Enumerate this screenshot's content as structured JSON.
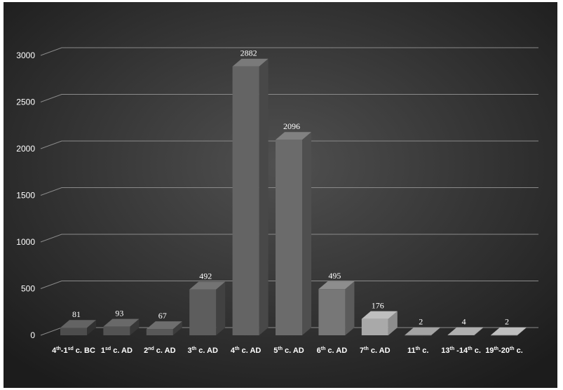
{
  "chart_data": {
    "type": "bar",
    "title": "",
    "xlabel": "",
    "ylabel": "",
    "ylim": [
      0,
      3000
    ],
    "yticks": [
      "0",
      "500",
      "1000",
      "1500",
      "2000",
      "2500",
      "3000"
    ],
    "grid": true,
    "legend": "none",
    "categories": [
      [
        {
          "t": "4"
        },
        {
          "t": "th",
          "sup": true
        },
        {
          "t": "-1"
        },
        {
          "t": "sd",
          "sup": true
        },
        {
          "t": " c. BC"
        }
      ],
      [
        {
          "t": "1"
        },
        {
          "t": "sd",
          "sup": true
        },
        {
          "t": " c. AD"
        }
      ],
      [
        {
          "t": "2"
        },
        {
          "t": "nd",
          "sup": true
        },
        {
          "t": " c. AD"
        }
      ],
      [
        {
          "t": "3"
        },
        {
          "t": "th",
          "sup": true
        },
        {
          "t": " c. AD"
        }
      ],
      [
        {
          "t": "4"
        },
        {
          "t": "th",
          "sup": true
        },
        {
          "t": " c. AD"
        }
      ],
      [
        {
          "t": "5"
        },
        {
          "t": "th",
          "sup": true
        },
        {
          "t": " c. AD"
        }
      ],
      [
        {
          "t": "6"
        },
        {
          "t": "th",
          "sup": true
        },
        {
          "t": " c. AD"
        }
      ],
      [
        {
          "t": "7"
        },
        {
          "t": "th",
          "sup": true
        },
        {
          "t": " c. AD"
        }
      ],
      [
        {
          "t": "11"
        },
        {
          "t": "th",
          "sup": true
        },
        {
          "t": " c."
        }
      ],
      [
        {
          "t": "13"
        },
        {
          "t": "th",
          "sup": true
        },
        {
          "t": " -14"
        },
        {
          "t": "th",
          "sup": true
        },
        {
          "t": " c."
        }
      ],
      [
        {
          "t": "19"
        },
        {
          "t": "th",
          "sup": true
        },
        {
          "t": "-20"
        },
        {
          "t": "th",
          "sup": true
        },
        {
          "t": " c."
        }
      ]
    ],
    "values": [
      81,
      93,
      67,
      492,
      2882,
      2096,
      495,
      176,
      2,
      4,
      2
    ],
    "data_labels": [
      "81",
      "93",
      "67",
      "492",
      "2882",
      "2096",
      "495",
      "176",
      "2",
      "4",
      "2"
    ],
    "colors": {
      "bar_front": [
        "#4d4d4d",
        "#535353",
        "#585858",
        "#5d5d5d",
        "#646464",
        "#6b6b6b",
        "#777777",
        "#a9a9a9",
        "#8e8e8e",
        "#9a9a9a",
        "#a9a9a9"
      ],
      "text": "#ffffff",
      "gridline": "#8a8a8a"
    }
  }
}
